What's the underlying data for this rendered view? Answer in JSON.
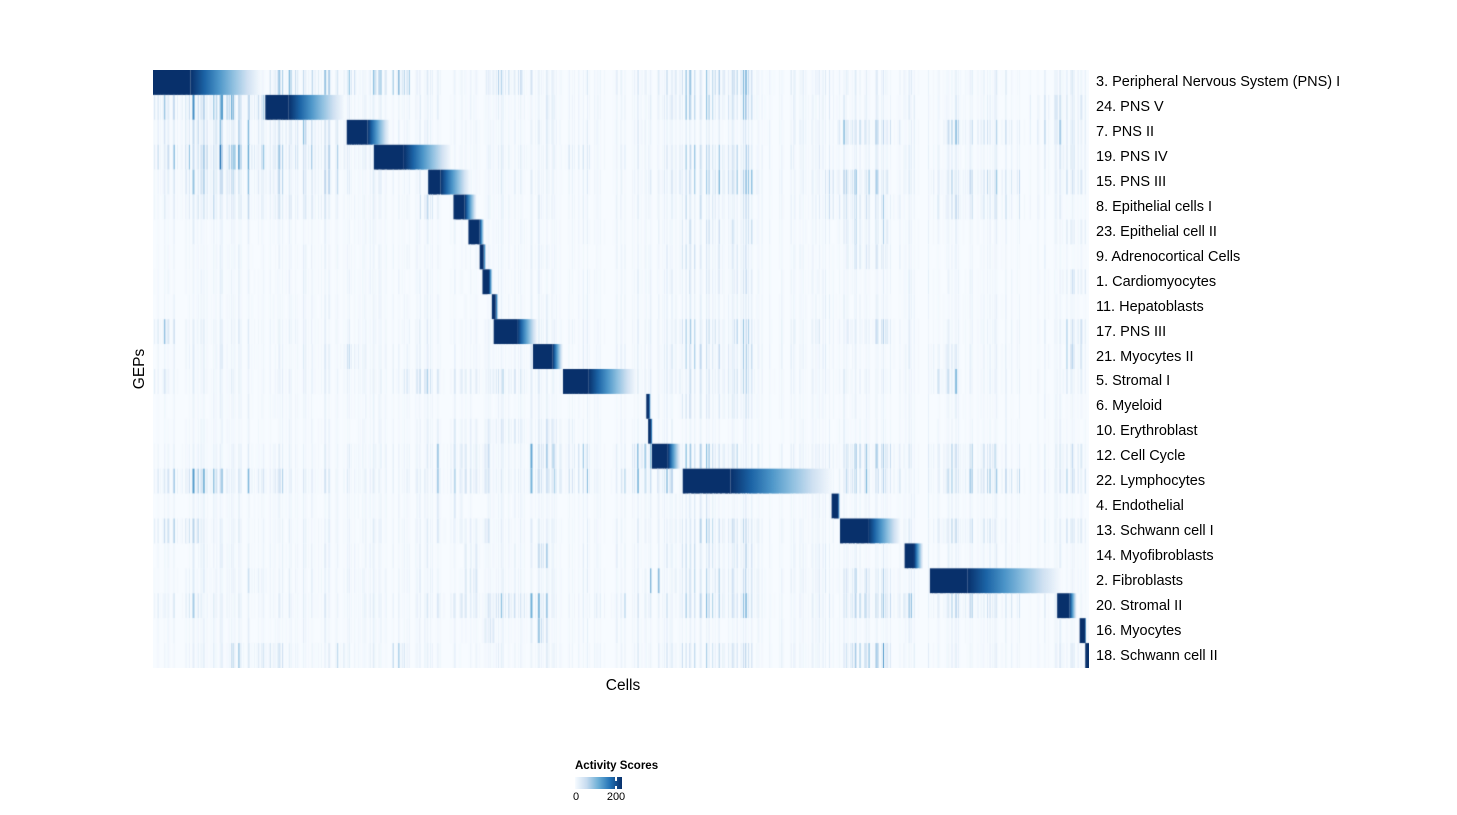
{
  "chart_data": {
    "type": "heatmap",
    "xlabel": "Cells",
    "ylabel": "GEPs",
    "value_range": [
      0,
      200
    ],
    "colormap": {
      "name": "Blues",
      "stops": [
        "#F7FBFF",
        "#C6DBEF",
        "#6BAED6",
        "#2171B5",
        "#08306B"
      ]
    },
    "legend": {
      "title": "Activity Scores",
      "min_label": "0",
      "max_label": "200",
      "position": "bottom"
    },
    "n_rows": 24,
    "seed": 42,
    "n_cell_columns": 460,
    "rows": [
      {
        "label": "3. Peripheral Nervous System (PNS) I",
        "block": [
          0.0,
          0.04,
          0.116
        ],
        "base": 0.16,
        "bands": [
          [
            0.122,
            0.215,
            0.5
          ],
          [
            0.235,
            0.275,
            0.75
          ],
          [
            0.355,
            0.395,
            0.45
          ],
          [
            0.555,
            0.645,
            0.55
          ],
          [
            0.975,
            1.0,
            0.35
          ]
        ]
      },
      {
        "label": "24. PNS V",
        "block": [
          0.12,
          0.145,
          0.205
        ],
        "base": 0.15,
        "bands": [
          [
            0.0,
            0.118,
            0.7
          ],
          [
            0.555,
            0.645,
            0.45
          ],
          [
            0.93,
            1.0,
            0.4
          ]
        ]
      },
      {
        "label": "7. PNS II",
        "block": [
          0.207,
          0.229,
          0.253
        ],
        "base": 0.15,
        "bands": [
          [
            0.0,
            0.205,
            0.42
          ],
          [
            0.73,
            0.8,
            0.45
          ],
          [
            0.84,
            1.0,
            0.38
          ]
        ]
      },
      {
        "label": "19. PNS IV",
        "block": [
          0.236,
          0.268,
          0.319
        ],
        "base": 0.15,
        "bands": [
          [
            0.0,
            0.118,
            0.78
          ],
          [
            0.118,
            0.205,
            0.48
          ],
          [
            0.44,
            0.47,
            0.35
          ],
          [
            0.555,
            0.645,
            0.42
          ],
          [
            0.97,
            1.0,
            0.45
          ]
        ]
      },
      {
        "label": "15. PNS III",
        "block": [
          0.294,
          0.307,
          0.339
        ],
        "base": 0.15,
        "bands": [
          [
            0.0,
            0.2,
            0.38
          ],
          [
            0.555,
            0.645,
            0.55
          ],
          [
            0.72,
            0.785,
            0.48
          ],
          [
            0.83,
            0.93,
            0.4
          ],
          [
            0.97,
            1.0,
            0.45
          ]
        ]
      },
      {
        "label": "8. Epithelial cells I",
        "block": [
          0.321,
          0.333,
          0.346
        ],
        "base": 0.12,
        "bands": [
          [
            0.0,
            0.2,
            0.28
          ],
          [
            0.285,
            0.3,
            0.35
          ],
          [
            0.555,
            0.645,
            0.3
          ],
          [
            0.72,
            0.8,
            0.35
          ],
          [
            0.83,
            0.95,
            0.3
          ]
        ]
      },
      {
        "label": "23. Epithelial cell II",
        "block": [
          0.337,
          0.349,
          0.354
        ],
        "base": 0.1,
        "bands": [
          [
            0.555,
            0.645,
            0.3
          ],
          [
            0.74,
            0.785,
            0.3
          ],
          [
            0.97,
            1.0,
            0.3
          ]
        ]
      },
      {
        "label": "9. Adrenocortical Cells",
        "block": [
          0.349,
          0.353,
          0.356
        ],
        "base": 0.1,
        "bands": [
          [
            0.555,
            0.645,
            0.25
          ],
          [
            0.74,
            0.8,
            0.25
          ]
        ]
      },
      {
        "label": "1. Cardiomyocytes",
        "block": [
          0.352,
          0.359,
          0.363
        ],
        "base": 0.1,
        "bands": [
          [
            0.555,
            0.645,
            0.25
          ],
          [
            0.97,
            1.0,
            0.4
          ]
        ]
      },
      {
        "label": "11. Hepatoblasts",
        "block": [
          0.362,
          0.366,
          0.369
        ],
        "base": 0.1,
        "bands": [
          [
            0.555,
            0.645,
            0.22
          ]
        ]
      },
      {
        "label": "17. PNS III",
        "block": [
          0.364,
          0.389,
          0.411
        ],
        "base": 0.14,
        "bands": [
          [
            0.0,
            0.025,
            0.8
          ],
          [
            0.555,
            0.645,
            0.45
          ],
          [
            0.74,
            0.79,
            0.35
          ],
          [
            0.975,
            1.0,
            0.6
          ]
        ]
      },
      {
        "label": "21. Myocytes II",
        "block": [
          0.406,
          0.427,
          0.438
        ],
        "base": 0.13,
        "bands": [
          [
            0.2,
            0.22,
            0.45
          ],
          [
            0.555,
            0.645,
            0.35
          ],
          [
            0.83,
            0.86,
            0.35
          ],
          [
            0.975,
            1.0,
            0.6
          ]
        ]
      },
      {
        "label": "5. Stromal I",
        "block": [
          0.438,
          0.465,
          0.517
        ],
        "base": 0.14,
        "bands": [
          [
            0.0,
            0.02,
            0.45
          ],
          [
            0.25,
            0.4,
            0.32
          ],
          [
            0.555,
            0.645,
            0.4
          ],
          [
            0.83,
            0.86,
            0.45
          ],
          [
            0.97,
            1.0,
            0.35
          ]
        ]
      },
      {
        "label": "6. Myeloid",
        "block": [
          0.527,
          0.53,
          0.532
        ],
        "base": 0.09,
        "bands": [
          [
            0.555,
            0.645,
            0.25
          ]
        ]
      },
      {
        "label": "10. Erythroblast",
        "block": [
          0.529,
          0.532,
          0.534
        ],
        "base": 0.09,
        "bands": [
          [
            0.3,
            0.45,
            0.22
          ]
        ]
      },
      {
        "label": "12. Cell Cycle",
        "block": [
          0.533,
          0.55,
          0.564
        ],
        "base": 0.15,
        "bands": [
          [
            0.3,
            0.36,
            0.5
          ],
          [
            0.4,
            0.47,
            0.45
          ],
          [
            0.505,
            0.533,
            0.55
          ],
          [
            0.564,
            0.63,
            0.5
          ],
          [
            0.74,
            0.8,
            0.45
          ],
          [
            0.83,
            0.9,
            0.38
          ],
          [
            0.97,
            1.0,
            0.45
          ]
        ]
      },
      {
        "label": "22. Lymphocytes",
        "block": [
          0.566,
          0.617,
          0.727
        ],
        "base": 0.18,
        "bands": [
          [
            0.0,
            0.08,
            0.55
          ],
          [
            0.1,
            0.14,
            0.45
          ],
          [
            0.3,
            0.36,
            0.62
          ],
          [
            0.4,
            0.47,
            0.55
          ],
          [
            0.5,
            0.555,
            0.45
          ],
          [
            0.74,
            0.8,
            0.55
          ],
          [
            0.83,
            0.93,
            0.45
          ],
          [
            0.97,
            1.0,
            0.55
          ]
        ]
      },
      {
        "label": "4. Endothelial",
        "block": [
          0.725,
          0.732,
          0.734
        ],
        "base": 0.1,
        "bands": [
          [
            0.3,
            0.33,
            0.25
          ],
          [
            0.555,
            0.6,
            0.25
          ]
        ]
      },
      {
        "label": "13. Schwann cell I",
        "block": [
          0.734,
          0.764,
          0.799
        ],
        "base": 0.13,
        "bands": [
          [
            0.0,
            0.05,
            0.45
          ],
          [
            0.3,
            0.36,
            0.35
          ],
          [
            0.555,
            0.645,
            0.38
          ],
          [
            0.83,
            0.9,
            0.35
          ],
          [
            0.975,
            1.0,
            0.45
          ]
        ]
      },
      {
        "label": "14. Myofibroblasts",
        "block": [
          0.803,
          0.813,
          0.823
        ],
        "base": 0.12,
        "bands": [
          [
            0.33,
            0.345,
            0.35
          ],
          [
            0.41,
            0.42,
            0.45
          ],
          [
            0.555,
            0.645,
            0.28
          ]
        ]
      },
      {
        "label": "2. Fibroblasts",
        "block": [
          0.83,
          0.87,
          0.971
        ],
        "base": 0.13,
        "bands": [
          [
            0.1,
            0.12,
            0.3
          ],
          [
            0.33,
            0.345,
            0.45
          ],
          [
            0.53,
            0.54,
            0.55
          ],
          [
            0.555,
            0.645,
            0.35
          ],
          [
            0.74,
            0.8,
            0.35
          ]
        ]
      },
      {
        "label": "20. Stromal II",
        "block": [
          0.966,
          0.979,
          0.987
        ],
        "base": 0.15,
        "bands": [
          [
            0.0,
            0.05,
            0.35
          ],
          [
            0.3,
            0.42,
            0.45
          ],
          [
            0.47,
            0.52,
            0.35
          ],
          [
            0.555,
            0.645,
            0.45
          ],
          [
            0.74,
            0.81,
            0.55
          ],
          [
            0.83,
            0.93,
            0.38
          ]
        ]
      },
      {
        "label": "16. Myocytes",
        "block": [
          0.99,
          0.996,
          0.997
        ],
        "base": 0.1,
        "bands": [
          [
            0.35,
            0.365,
            0.45
          ],
          [
            0.41,
            0.42,
            0.45
          ]
        ]
      },
      {
        "label": "18. Schwann cell II",
        "block": [
          0.996,
          1.0,
          1.0
        ],
        "base": 0.13,
        "bands": [
          [
            0.08,
            0.14,
            0.35
          ],
          [
            0.19,
            0.205,
            0.5
          ],
          [
            0.255,
            0.27,
            0.7
          ],
          [
            0.555,
            0.645,
            0.35
          ],
          [
            0.74,
            0.79,
            0.6
          ],
          [
            0.97,
            0.99,
            0.3
          ]
        ]
      }
    ]
  }
}
